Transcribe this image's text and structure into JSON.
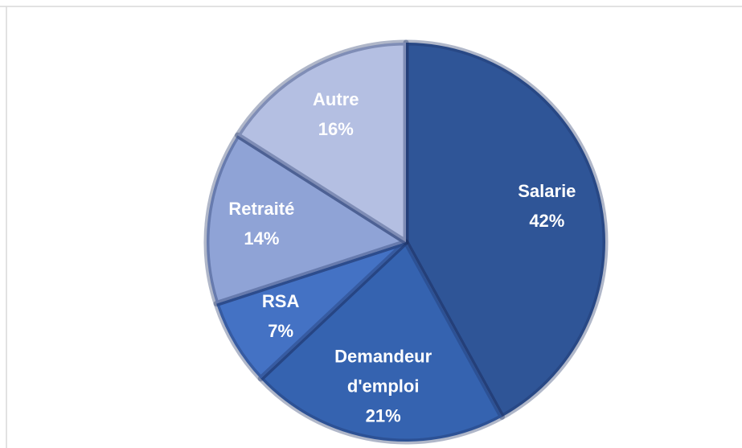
{
  "chart_data": {
    "type": "pie",
    "categories": [
      "Salarie",
      "Demandeur d'emploi",
      "RSA",
      "Retraité",
      "Autre"
    ],
    "values": [
      42,
      21,
      7,
      14,
      16
    ],
    "value_labels": [
      "42%",
      "21%",
      "7%",
      "14%",
      "16%"
    ],
    "colors": [
      "#2f5597",
      "#3563b0",
      "#4472c4",
      "#8fa3d6",
      "#b4bfe2"
    ]
  }
}
